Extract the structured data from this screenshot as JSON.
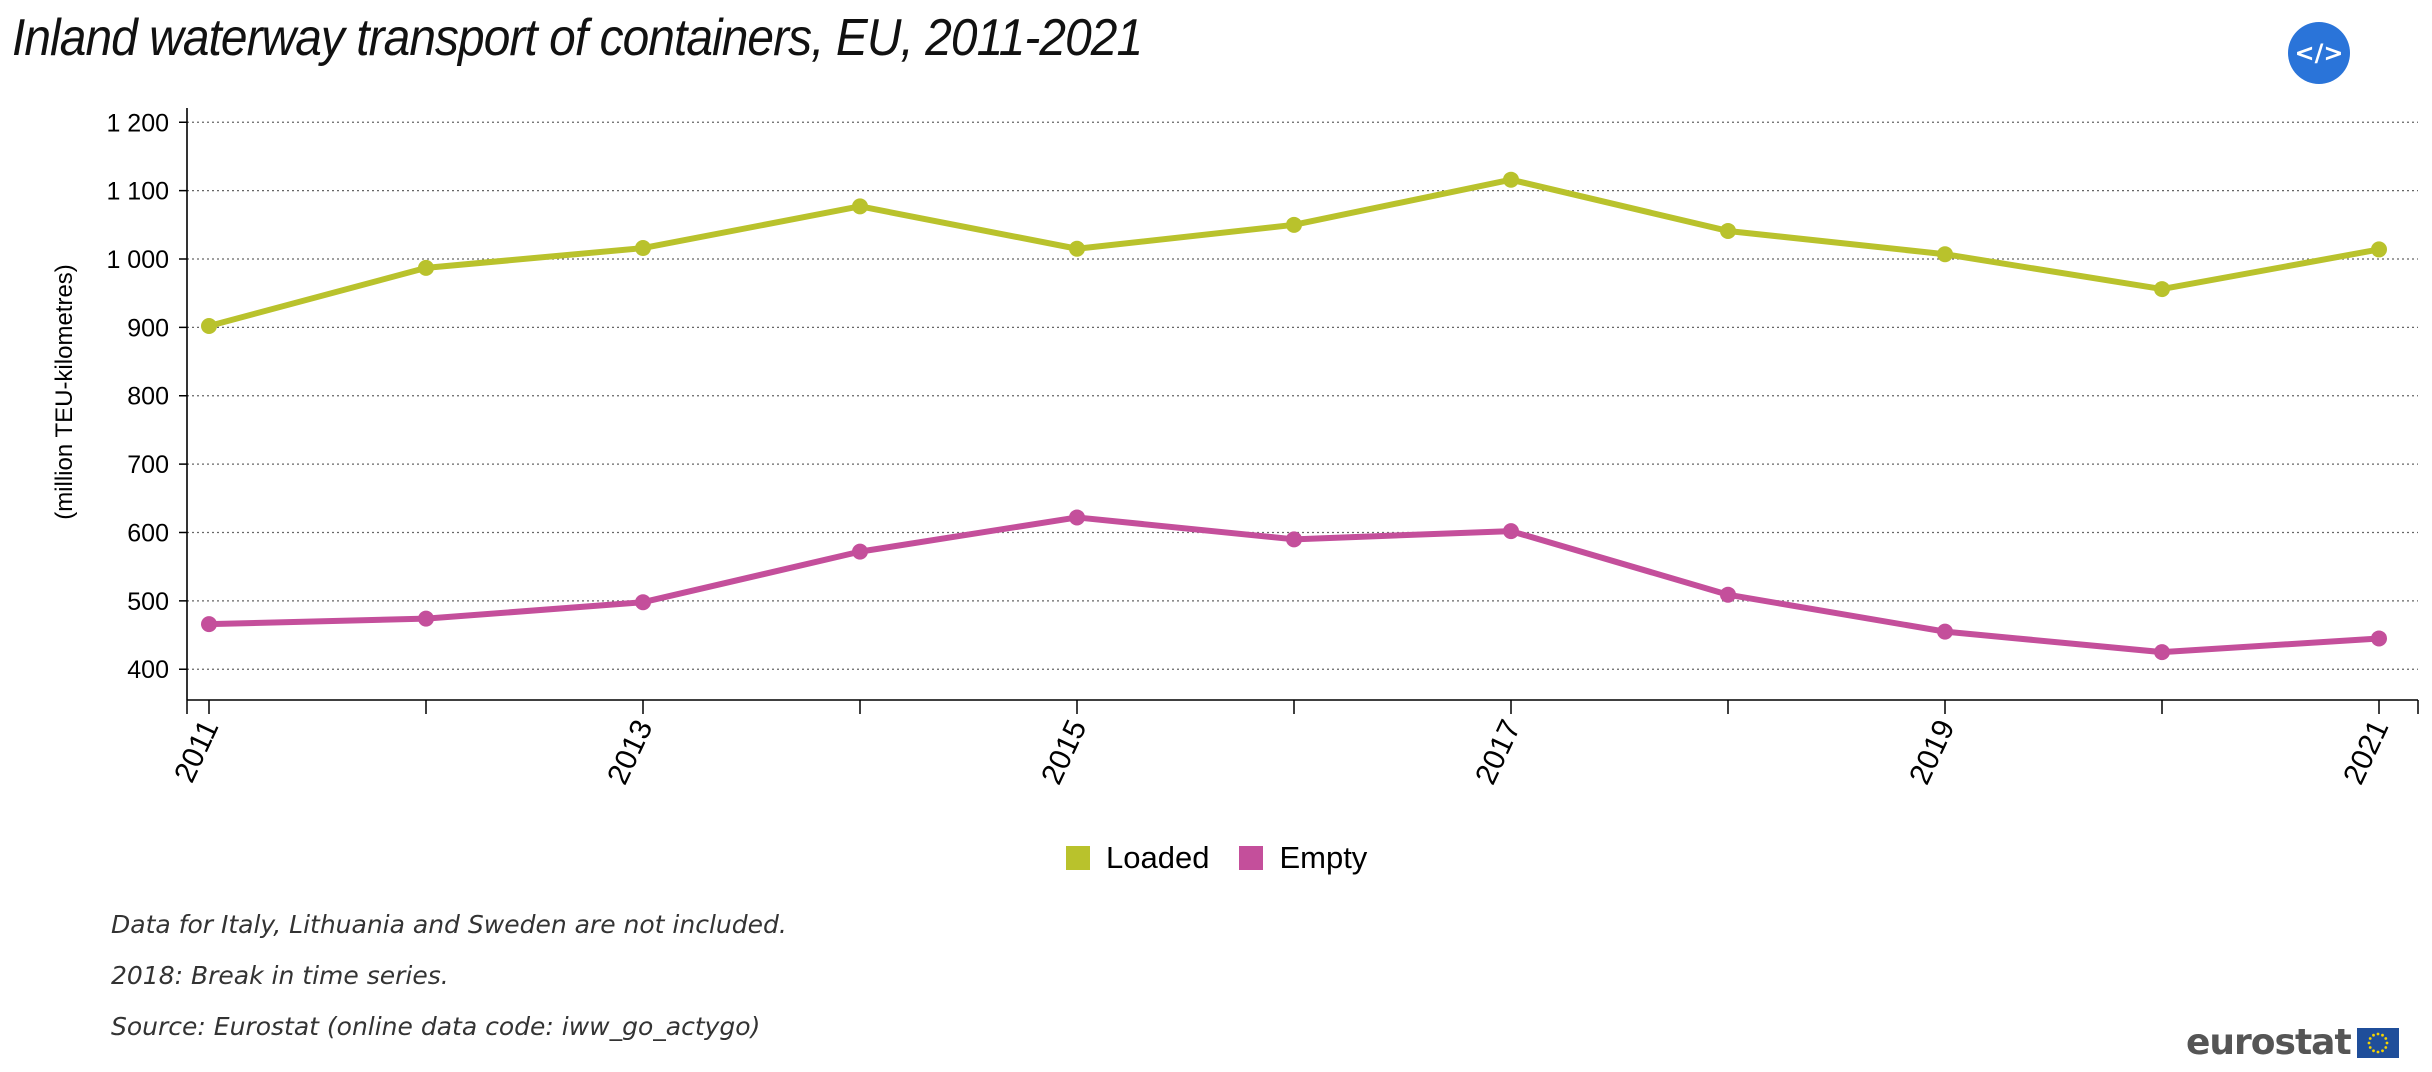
{
  "header": {
    "title": "Inland waterway transport of containers, EU, 2011-2021",
    "embed_label": "</>"
  },
  "chart_data": {
    "type": "line",
    "title": "Inland waterway transport of containers, EU, 2011-2021",
    "xlabel": "",
    "ylabel": "(million TEU-kilometres)",
    "x": [
      2011,
      2012,
      2013,
      2014,
      2015,
      2016,
      2017,
      2018,
      2019,
      2020,
      2021
    ],
    "x_tick_labels": [
      "2011",
      "2013",
      "2015",
      "2017",
      "2019",
      "2021"
    ],
    "y_ticks": [
      400,
      500,
      600,
      700,
      800,
      900,
      1000,
      1100,
      1200
    ],
    "y_tick_labels": [
      "400",
      "500",
      "600",
      "700",
      "800",
      "900",
      "1 000",
      "1 100",
      "1 200"
    ],
    "ylim": [
      355,
      1215
    ],
    "grid": true,
    "legend_position": "bottom",
    "series": [
      {
        "name": "Loaded",
        "color": "#b9c22c",
        "values": [
          902,
          987,
          1016,
          1077,
          1015,
          1050,
          1116,
          1041,
          1007,
          956,
          1014
        ]
      },
      {
        "name": "Empty",
        "color": "#c44f9b",
        "values": [
          466,
          474,
          498,
          572,
          622,
          590,
          602,
          509,
          455,
          425,
          445
        ]
      }
    ]
  },
  "footer": {
    "notes": [
      "Data for Italy, Lithuania and Sweden are not included.",
      "2018: Break in time series.",
      "Source: Eurostat (online data code: iww_go_actygo)"
    ],
    "logo_text": "eurostat"
  }
}
